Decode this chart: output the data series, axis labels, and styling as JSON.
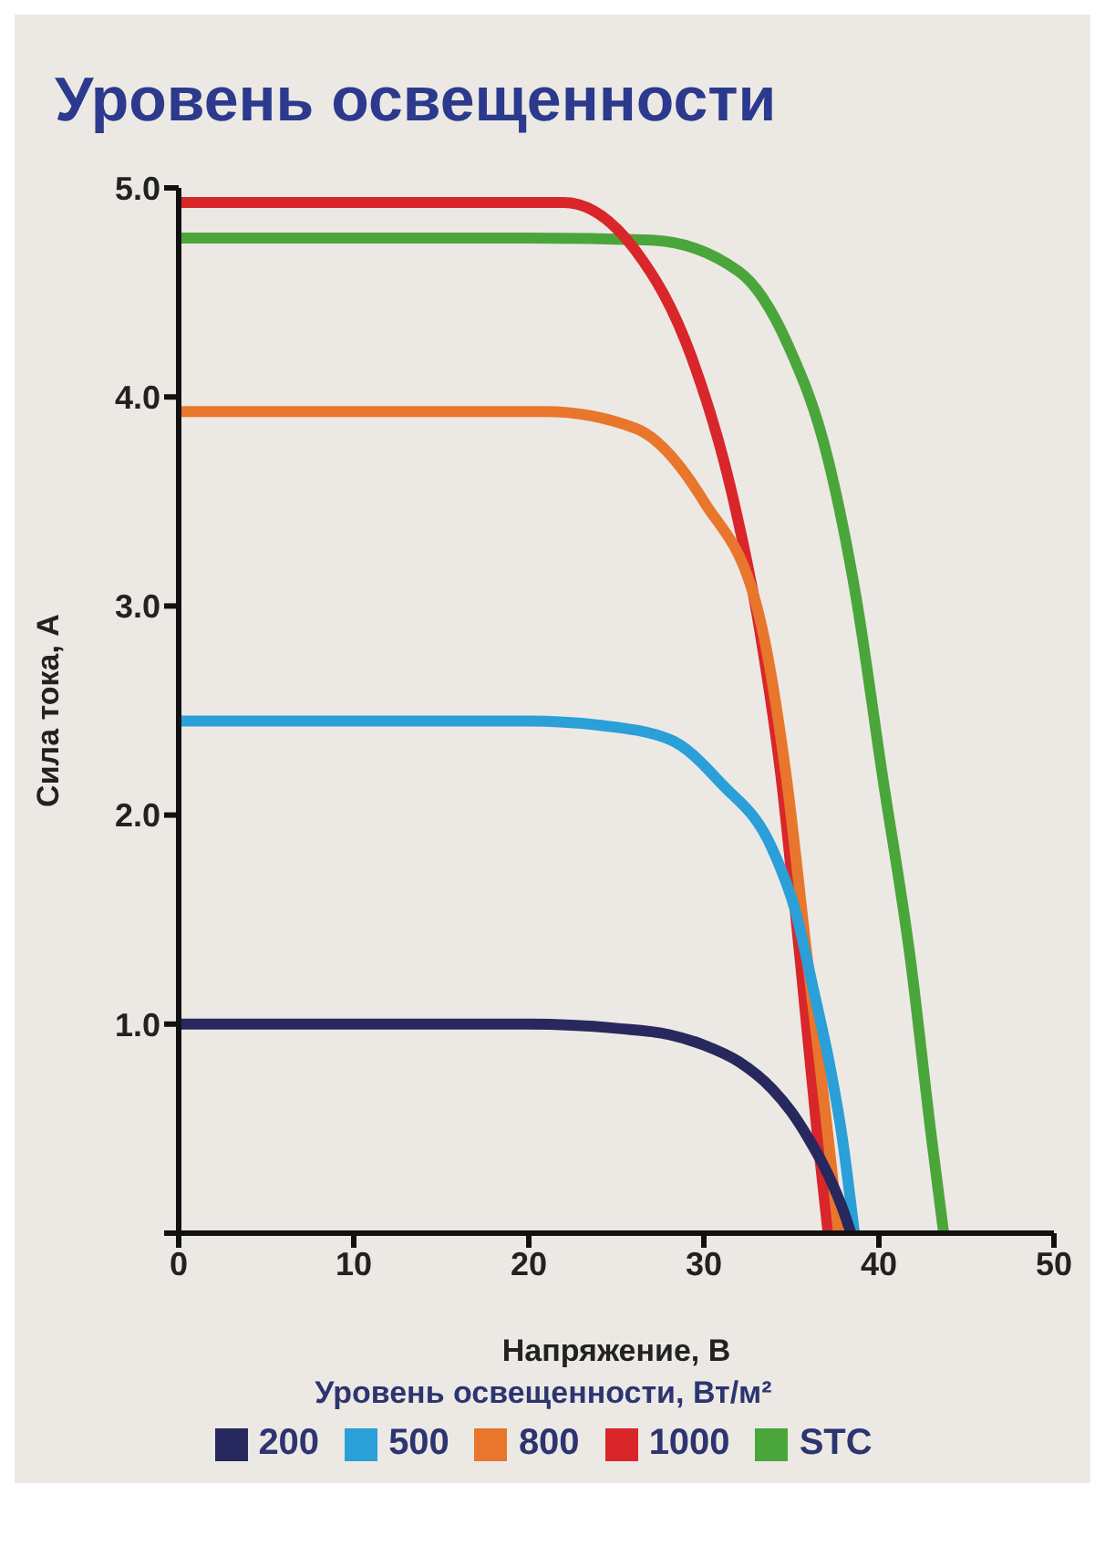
{
  "chart_data": {
    "type": "line",
    "title": "Уровень освещенности",
    "xlabel": "Напряжение, В",
    "ylabel": "Сила тока, А",
    "legend_title": "Уровень освещенности, Вт/м²",
    "legend": "bottom",
    "grid": false,
    "marker": "none",
    "line_style": "solid",
    "xlim": [
      0,
      50
    ],
    "xticks": [
      0,
      10,
      20,
      30,
      40,
      50
    ],
    "ylim": [
      0,
      5
    ],
    "yticks": [
      {
        "value": 0,
        "label": null
      },
      {
        "value": 1,
        "label": "1.0"
      },
      {
        "value": 2,
        "label": "2.0"
      },
      {
        "value": 3,
        "label": "3.0"
      },
      {
        "value": 4,
        "label": "4.0"
      },
      {
        "value": 5,
        "label": "5.0"
      }
    ],
    "series": [
      {
        "name": "200",
        "color": "#27285e",
        "x": [
          0,
          10,
          20,
          25,
          28,
          30,
          32,
          33.9,
          35,
          36,
          37.1,
          38,
          38.4
        ],
        "values": [
          1,
          1,
          1,
          0.98,
          0.95,
          0.9,
          0.82,
          0.69,
          0.58,
          0.45,
          0.28,
          0.1,
          0
        ]
      },
      {
        "name": "500",
        "color": "#2a9fd8",
        "x": [
          0,
          10,
          20,
          24,
          28.1,
          31,
          33.9,
          35.2,
          36.3,
          37.2,
          37.9,
          38.6
        ],
        "values": [
          2.45,
          2.45,
          2.45,
          2.43,
          2.36,
          2.15,
          1.84,
          1.55,
          1.15,
          0.8,
          0.46,
          0
        ]
      },
      {
        "name": "800",
        "color": "#e8762c",
        "x": [
          0,
          10,
          21,
          26.1,
          30,
          33.2,
          34.7,
          35.9,
          36.5,
          37.1,
          37.7
        ],
        "values": [
          3.93,
          3.93,
          3.93,
          3.85,
          3.5,
          2.94,
          2.19,
          1.32,
          0.9,
          0.46,
          0
        ]
      },
      {
        "name": "1000",
        "color": "#d9262a",
        "x": [
          0,
          10,
          22,
          26.1,
          29.3,
          31.6,
          33.2,
          34.4,
          35.5,
          36.5,
          37.1
        ],
        "values": [
          4.93,
          4.93,
          4.93,
          4.7,
          4.19,
          3.54,
          2.88,
          2.19,
          1.31,
          0.46,
          0
        ]
      },
      {
        "name": "STC",
        "color": "#4aa63a",
        "x": [
          0,
          10,
          20,
          27,
          32,
          34.8,
          37.1,
          38.7,
          40.2,
          41.8,
          43,
          43.7
        ],
        "values": [
          4.76,
          4.76,
          4.76,
          4.75,
          4.6,
          4.25,
          3.7,
          3.04,
          2.19,
          1.31,
          0.46,
          0
        ]
      }
    ]
  }
}
